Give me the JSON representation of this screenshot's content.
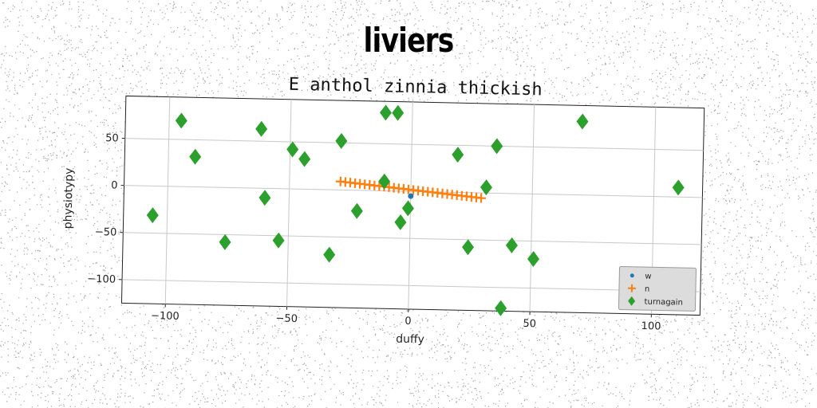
{
  "figure": {
    "title": "liviers"
  },
  "chart_data": {
    "type": "scatter",
    "title": "E anthol zinnia thickish",
    "xlabel": "duffy",
    "ylabel": "physiotypy",
    "xlim": [
      -118,
      120
    ],
    "ylim": [
      -125,
      95
    ],
    "xticks": [
      -100,
      -50,
      0,
      50,
      100
    ],
    "yticks": [
      -100,
      -50,
      0,
      50
    ],
    "grid": true,
    "legend_position": "bottom-right",
    "series": [
      {
        "name": "w",
        "marker": "circle",
        "color": "#1f77b4",
        "x": [
          0
        ],
        "y": [
          -5
        ]
      },
      {
        "name": "n",
        "marker": "plus",
        "color": "#ff7f0e",
        "x": [
          -29,
          -27,
          -25,
          -23,
          -21,
          -19,
          -17,
          -15,
          -13,
          -11,
          -9,
          -7,
          -5,
          -3,
          -1,
          1,
          3,
          5,
          7,
          9,
          11,
          13,
          15,
          17,
          19,
          21,
          23,
          25,
          27,
          29
        ],
        "y": [
          9.0,
          8.5,
          8.0,
          7.5,
          7.0,
          6.5,
          6.0,
          5.5,
          5.0,
          4.5,
          4.0,
          3.5,
          3.0,
          2.5,
          2.0,
          1.5,
          1.0,
          0.5,
          0.0,
          -0.5,
          -1.0,
          -1.5,
          -2.0,
          -2.5,
          -3.0,
          -3.5,
          -4.0,
          -4.5,
          -5.0,
          -5.5
        ]
      },
      {
        "name": "turnagain",
        "marker": "diamond",
        "color": "#2ca02c",
        "x": [
          -95,
          -106,
          -89,
          -76,
          -62,
          -60,
          -54,
          -49,
          -44,
          -33,
          -29,
          -22,
          -11,
          -11,
          -6,
          -4,
          -1,
          19,
          24,
          31,
          35,
          42,
          51,
          70,
          110,
          38
        ],
        "y": [
          70,
          -31,
          32,
          -58,
          63,
          -10,
          -55,
          42,
          32,
          -69,
          52,
          -22,
          83,
          10,
          83,
          -33,
          -18,
          40,
          -58,
          6,
          50,
          -55,
          -69,
          78,
          10,
          -122
        ]
      }
    ]
  }
}
